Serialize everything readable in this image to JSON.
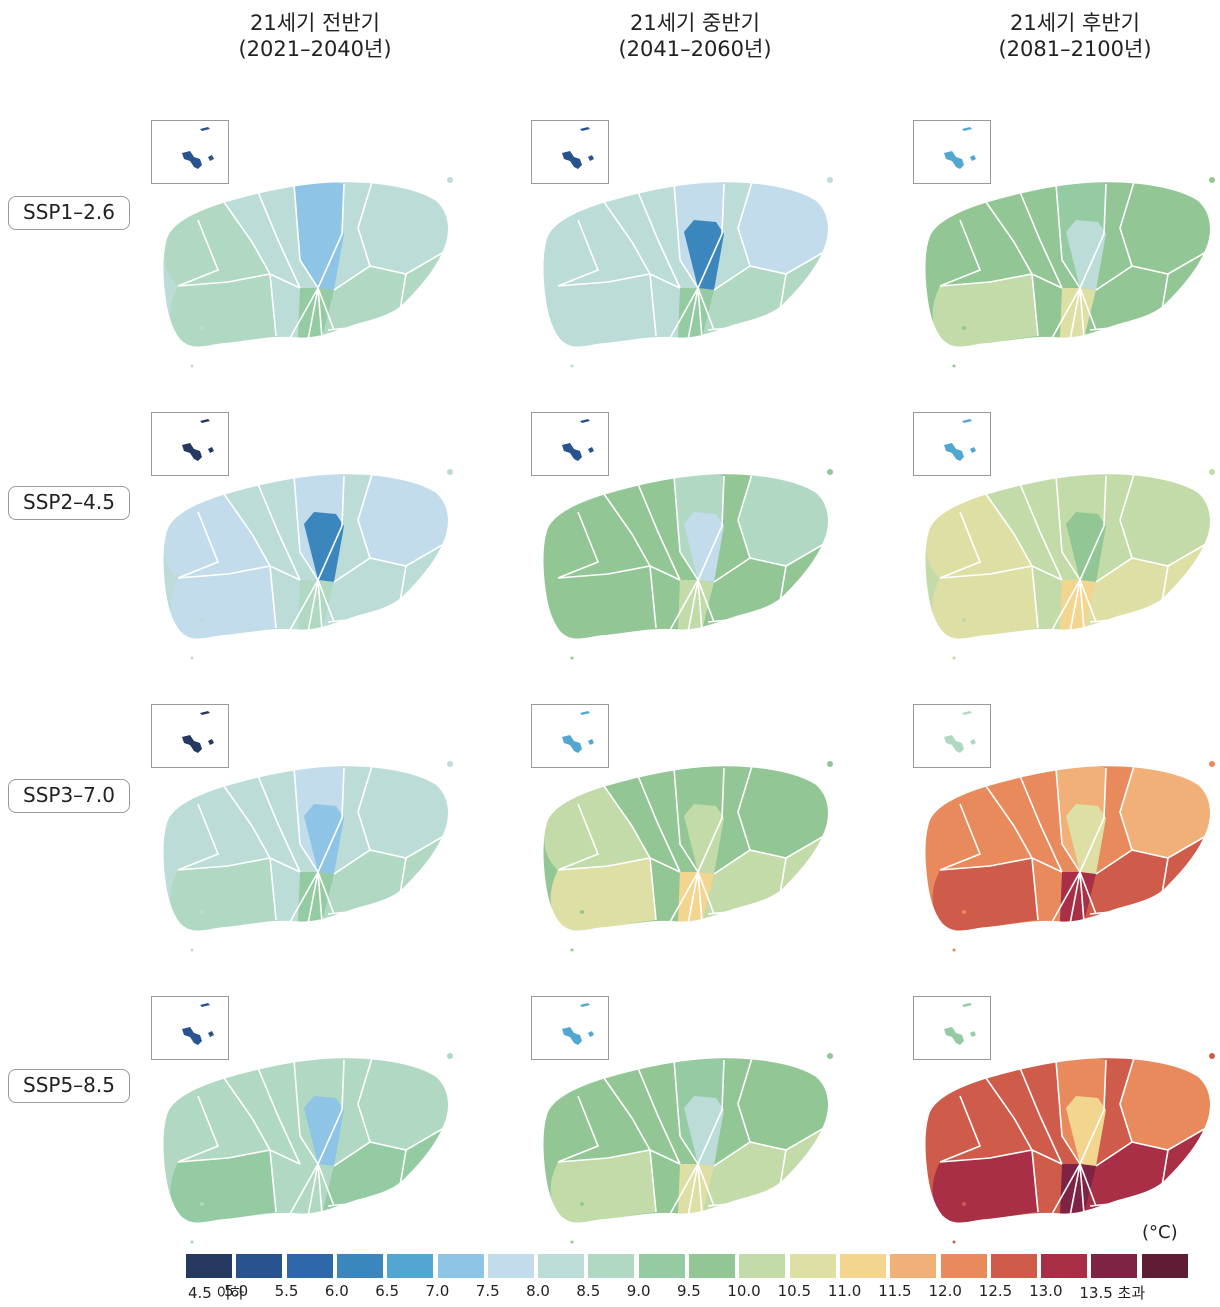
{
  "columns": [
    {
      "line1": "21세기 전반기",
      "line2": "(2021–2040년)"
    },
    {
      "line1": "21세기 중반기",
      "line2": "(2041–2060년)"
    },
    {
      "line1": "21세기 후반기",
      "line2": "(2081–2100년)"
    }
  ],
  "rows": [
    "SSP1–2.6",
    "SSP2–4.5",
    "SSP3–7.0",
    "SSP5–8.5"
  ],
  "legend": {
    "unit": "(°C)",
    "colors": [
      "#253860",
      "#29538f",
      "#2f68a8",
      "#3a86bd",
      "#52a6d2",
      "#8ec4e6",
      "#c2dcec",
      "#bcdcd8",
      "#b0d8c2",
      "#94cba2",
      "#92c695",
      "#c3dba9",
      "#dedfa5",
      "#f2d690",
      "#f0b077",
      "#e88a5c",
      "#cf5b4a",
      "#a82f46",
      "#7f2345",
      "#5e1d35"
    ],
    "ticks": [
      "4.5 이하",
      "5.0",
      "5.5",
      "6.0",
      "6.5",
      "7.0",
      "7.5",
      "8.0",
      "8.5",
      "9.0",
      "9.5",
      "10.0",
      "10.5",
      "11.0",
      "11.5",
      "12.0",
      "12.5",
      "13.0",
      "13.5 초과"
    ]
  },
  "maps": [
    {
      "base": "#bcdcd8",
      "north": "#8ec4e6",
      "center": "#8ec4e6",
      "west": "#b0d8c2",
      "southwest": "#b0d8c2",
      "south": "#b0d8c2",
      "southcenter": "#94cba2",
      "east": "#bcdcd8",
      "inset": "#29538f"
    },
    {
      "base": "#bcdcd8",
      "north": "#c2dcec",
      "center": "#3a86bd",
      "west": "#bcdcd8",
      "southwest": "#bcdcd8",
      "south": "#b0d8c2",
      "southcenter": "#94cba2",
      "east": "#c2dcec",
      "inset": "#29538f"
    },
    {
      "base": "#92c695",
      "north": "#94cba2",
      "center": "#bcdcd8",
      "west": "#92c695",
      "southwest": "#c3dba9",
      "south": "#92c695",
      "southcenter": "#dedfa5",
      "east": "#92c695",
      "inset": "#52a6d2"
    },
    {
      "base": "#bcdcd8",
      "north": "#c2dcec",
      "center": "#3a86bd",
      "west": "#c2dcec",
      "southwest": "#c2dcec",
      "south": "#bcdcd8",
      "southcenter": "#b0d8c2",
      "east": "#c2dcec",
      "inset": "#253860"
    },
    {
      "base": "#92c695",
      "north": "#b0d8c2",
      "center": "#c2dcec",
      "west": "#92c695",
      "southwest": "#92c695",
      "south": "#92c695",
      "southcenter": "#c3dba9",
      "east": "#b0d8c2",
      "inset": "#29538f"
    },
    {
      "base": "#c3dba9",
      "north": "#c3dba9",
      "center": "#92c695",
      "west": "#dedfa5",
      "southwest": "#dedfa5",
      "south": "#dedfa5",
      "southcenter": "#f2d690",
      "east": "#c3dba9",
      "inset": "#52a6d2"
    },
    {
      "base": "#bcdcd8",
      "north": "#c2dcec",
      "center": "#8ec4e6",
      "west": "#bcdcd8",
      "southwest": "#b0d8c2",
      "south": "#b0d8c2",
      "southcenter": "#94cba2",
      "east": "#bcdcd8",
      "inset": "#253860"
    },
    {
      "base": "#92c695",
      "north": "#92c695",
      "center": "#c3dba9",
      "west": "#c3dba9",
      "southwest": "#dedfa5",
      "south": "#c3dba9",
      "southcenter": "#f2d690",
      "east": "#92c695",
      "inset": "#52a6d2"
    },
    {
      "base": "#e88a5c",
      "north": "#f0b077",
      "center": "#dedfa5",
      "west": "#e88a5c",
      "southwest": "#cf5b4a",
      "south": "#cf5b4a",
      "southcenter": "#a82f46",
      "east": "#f0b077",
      "inset": "#b0d8c2"
    },
    {
      "base": "#b0d8c2",
      "north": "#b0d8c2",
      "center": "#8ec4e6",
      "west": "#b0d8c2",
      "southwest": "#94cba2",
      "south": "#94cba2",
      "southcenter": "#b0d8c2",
      "east": "#b0d8c2",
      "inset": "#29538f"
    },
    {
      "base": "#92c695",
      "north": "#94cba2",
      "center": "#bcdcd8",
      "west": "#92c695",
      "southwest": "#c3dba9",
      "south": "#c3dba9",
      "southcenter": "#dedfa5",
      "east": "#92c695",
      "inset": "#52a6d2"
    },
    {
      "base": "#cf5b4a",
      "north": "#e88a5c",
      "center": "#f2d690",
      "west": "#cf5b4a",
      "southwest": "#a82f46",
      "south": "#a82f46",
      "southcenter": "#7f2345",
      "east": "#e88a5c",
      "inset": "#94cba2"
    }
  ]
}
